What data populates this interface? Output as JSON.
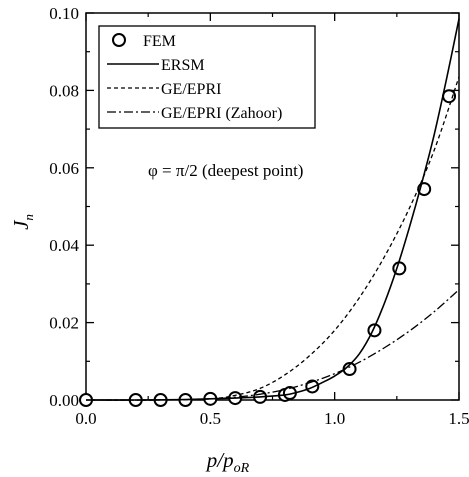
{
  "chart_data": {
    "type": "line",
    "xlabel_main": "p/p",
    "xlabel_sub": "oR",
    "ylabel_main": "J",
    "ylabel_sub": "n",
    "xlim": [
      0.0,
      1.5
    ],
    "ylim": [
      0.0,
      0.1
    ],
    "xticks": [
      0.0,
      0.5,
      1.0,
      1.5
    ],
    "xtick_labels": [
      "0.0",
      "0.5",
      "1.0",
      "1.5"
    ],
    "yticks": [
      0.0,
      0.02,
      0.04,
      0.06,
      0.08,
      0.1
    ],
    "ytick_labels": [
      "0.00",
      "0.02",
      "0.04",
      "0.06",
      "0.08",
      "0.10"
    ],
    "annotation": "φ = π/2 (deepest point)",
    "legend_position": "top-left",
    "series": [
      {
        "name": "FEM",
        "style": "markers",
        "x": [
          0.0,
          0.2,
          0.3,
          0.4,
          0.5,
          0.6,
          0.7,
          0.8,
          0.82,
          0.91,
          1.06,
          1.16,
          1.26,
          1.36,
          1.46
        ],
        "y": [
          0.0,
          0.0,
          0.0,
          0.0,
          0.0003,
          0.0005,
          0.0008,
          0.0013,
          0.0018,
          0.0035,
          0.008,
          0.018,
          0.034,
          0.0545,
          0.0785
        ]
      },
      {
        "name": "ERSM",
        "style": "solid",
        "x": [
          0.0,
          0.2,
          0.4,
          0.5,
          0.6,
          0.7,
          0.8,
          0.85,
          0.9,
          0.95,
          1.0,
          1.05,
          1.1,
          1.15,
          1.2,
          1.25,
          1.3,
          1.35,
          1.4,
          1.45,
          1.5
        ],
        "y": [
          0.0,
          0.0,
          0.0001,
          0.0003,
          0.0005,
          0.0008,
          0.0013,
          0.002,
          0.003,
          0.0045,
          0.0062,
          0.0085,
          0.012,
          0.0175,
          0.025,
          0.034,
          0.0445,
          0.056,
          0.0685,
          0.083,
          0.0985
        ]
      },
      {
        "name": "GE/EPRI",
        "style": "dashed",
        "x": [
          0.0,
          0.3,
          0.5,
          0.6,
          0.7,
          0.8,
          0.9,
          1.0,
          1.1,
          1.2,
          1.3,
          1.4,
          1.5
        ],
        "y": [
          0.0,
          0.0,
          0.0003,
          0.0012,
          0.003,
          0.0065,
          0.0115,
          0.018,
          0.0265,
          0.037,
          0.0495,
          0.0645,
          0.0835
        ]
      },
      {
        "name": "GE/EPRI (Zahoor)",
        "style": "dashdot",
        "x": [
          0.0,
          0.3,
          0.5,
          0.6,
          0.7,
          0.8,
          0.9,
          1.0,
          1.1,
          1.2,
          1.3,
          1.4,
          1.5
        ],
        "y": [
          0.0,
          0.0,
          0.0003,
          0.0007,
          0.0015,
          0.0027,
          0.0045,
          0.0068,
          0.0098,
          0.0135,
          0.0178,
          0.0228,
          0.0285
        ]
      }
    ]
  }
}
